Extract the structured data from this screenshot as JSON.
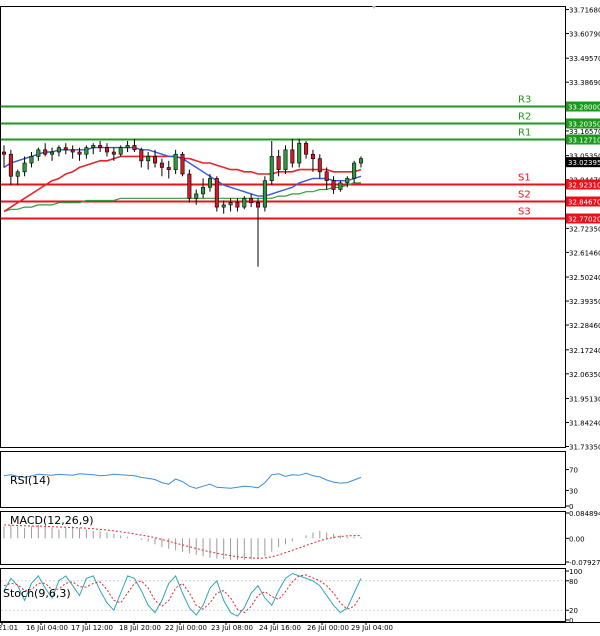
{
  "chart_data": [
    {
      "name": "main",
      "type": "candlestick",
      "price_axis_ticks": [
        "33.71680",
        "33.60790",
        "33.49570",
        "33.38690",
        "33.27800",
        "33.16570",
        "33.05350",
        "32.94470",
        "32.83590",
        "32.72350",
        "32.61460",
        "32.50240",
        "32.39350",
        "32.28460",
        "32.17240",
        "32.06350",
        "31.95130",
        "31.84240",
        "31.73350"
      ],
      "ylim": [
        31.7335,
        33.7168
      ],
      "time_labels": [
        "21:01",
        "16 Jul 04:00",
        "17 Jul 12:00",
        "18 Jul 20:00",
        "22 Jul 00:00",
        "23 Jul 08:00",
        "24 Jul 16:00",
        "26 Jul 00:00",
        "29 Jul 04:00"
      ],
      "current_price": "33.02395",
      "levels": [
        {
          "label": "R3",
          "value": "33.28000",
          "y": 33.28,
          "color": "#1a9a1a"
        },
        {
          "label": "R2",
          "value": "33.20350",
          "y": 33.2035,
          "color": "#1a9a1a"
        },
        {
          "label": "R1",
          "value": "33.12710",
          "y": 33.1271,
          "color": "#1a9a1a"
        },
        {
          "label": "S1",
          "value": "32.92310",
          "y": 32.9231,
          "color": "#e8101a"
        },
        {
          "label": "S2",
          "value": "32.84670",
          "y": 32.8467,
          "color": "#e8101a"
        },
        {
          "label": "S3",
          "value": "32.77020",
          "y": 32.7702,
          "color": "#e8101a"
        }
      ],
      "candles": [
        [
          33.07,
          33.1,
          33.0,
          33.06
        ],
        [
          33.06,
          33.08,
          32.92,
          32.96
        ],
        [
          32.96,
          32.99,
          32.92,
          32.98
        ],
        [
          32.98,
          33.05,
          32.96,
          33.02
        ],
        [
          33.02,
          33.07,
          33.0,
          33.05
        ],
        [
          33.05,
          33.09,
          33.03,
          33.08
        ],
        [
          33.08,
          33.11,
          33.05,
          33.06
        ],
        [
          33.06,
          33.09,
          33.03,
          33.07
        ],
        [
          33.07,
          33.1,
          33.05,
          33.09
        ],
        [
          33.09,
          33.11,
          33.06,
          33.08
        ],
        [
          33.08,
          33.1,
          33.04,
          33.07
        ],
        [
          33.07,
          33.09,
          33.03,
          33.06
        ],
        [
          33.06,
          33.1,
          33.04,
          33.09
        ],
        [
          33.09,
          33.11,
          33.06,
          33.1
        ],
        [
          33.1,
          33.12,
          33.07,
          33.09
        ],
        [
          33.09,
          33.11,
          33.05,
          33.07
        ],
        [
          33.07,
          33.09,
          33.03,
          33.06
        ],
        [
          33.06,
          33.1,
          33.05,
          33.09
        ],
        [
          33.09,
          33.12,
          33.07,
          33.1
        ],
        [
          33.1,
          33.13,
          33.07,
          33.08
        ],
        [
          33.08,
          33.09,
          33.0,
          33.03
        ],
        [
          33.03,
          33.07,
          32.99,
          33.05
        ],
        [
          33.05,
          33.08,
          33.0,
          33.02
        ],
        [
          33.02,
          33.04,
          32.96,
          33.0
        ],
        [
          33.0,
          33.03,
          32.95,
          32.99
        ],
        [
          32.99,
          33.08,
          32.97,
          33.06
        ],
        [
          33.06,
          33.07,
          32.96,
          32.97
        ],
        [
          32.97,
          32.99,
          32.84,
          32.86
        ],
        [
          32.86,
          32.9,
          32.83,
          32.88
        ],
        [
          32.88,
          32.95,
          32.86,
          32.91
        ],
        [
          32.91,
          32.97,
          32.89,
          32.95
        ],
        [
          32.95,
          32.96,
          32.8,
          32.82
        ],
        [
          32.82,
          32.85,
          32.79,
          32.83
        ],
        [
          32.83,
          32.86,
          32.8,
          32.84
        ],
        [
          32.84,
          32.86,
          32.8,
          32.82
        ],
        [
          32.82,
          32.87,
          32.81,
          32.86
        ],
        [
          32.86,
          32.88,
          32.82,
          32.84
        ],
        [
          32.84,
          32.86,
          32.55,
          32.82
        ],
        [
          32.82,
          32.96,
          32.8,
          32.94
        ],
        [
          32.94,
          33.12,
          32.92,
          33.05
        ],
        [
          33.05,
          33.08,
          32.96,
          32.99
        ],
        [
          32.99,
          33.1,
          32.97,
          33.08
        ],
        [
          33.08,
          33.13,
          33.0,
          33.02
        ],
        [
          33.02,
          33.13,
          33.0,
          33.11
        ],
        [
          33.11,
          33.12,
          33.04,
          33.06
        ],
        [
          33.06,
          33.08,
          32.98,
          33.04
        ],
        [
          33.04,
          33.06,
          32.95,
          32.98
        ],
        [
          32.98,
          33.0,
          32.9,
          32.94
        ],
        [
          32.94,
          32.96,
          32.88,
          32.9
        ],
        [
          32.9,
          32.94,
          32.89,
          32.93
        ],
        [
          32.93,
          32.96,
          32.91,
          32.95
        ],
        [
          32.95,
          33.03,
          32.93,
          33.02
        ],
        [
          33.02,
          33.05,
          33.0,
          33.04
        ]
      ],
      "ma_fast": [
        33.0,
        33.02,
        33.03,
        33.04,
        33.05,
        33.06,
        33.07,
        33.07,
        33.08,
        33.08,
        33.08,
        33.08,
        33.08,
        33.09,
        33.09,
        33.09,
        33.09,
        33.09,
        33.09,
        33.09,
        33.08,
        33.08,
        33.07,
        33.06,
        33.05,
        33.05,
        33.04,
        33.02,
        33.0,
        32.98,
        32.96,
        32.94,
        32.92,
        32.91,
        32.9,
        32.89,
        32.88,
        32.87,
        32.87,
        32.88,
        32.89,
        32.9,
        32.91,
        32.93,
        32.94,
        32.95,
        32.95,
        32.95,
        32.94,
        32.94,
        32.94,
        32.95,
        32.96
      ],
      "ma_mid": [
        32.8,
        32.82,
        32.84,
        32.86,
        32.88,
        32.9,
        32.92,
        32.94,
        32.95,
        32.97,
        32.98,
        33.0,
        33.01,
        33.02,
        33.03,
        33.03,
        33.04,
        33.05,
        33.05,
        33.05,
        33.05,
        33.05,
        33.05,
        33.05,
        33.05,
        33.05,
        33.04,
        33.04,
        33.03,
        33.02,
        33.02,
        33.01,
        33.0,
        32.99,
        32.99,
        32.98,
        32.98,
        32.97,
        32.97,
        32.97,
        32.98,
        32.98,
        32.98,
        32.99,
        32.99,
        32.99,
        32.99,
        32.99,
        32.98,
        32.98,
        32.98,
        32.98,
        32.99
      ],
      "ma_slow": [
        32.8,
        32.81,
        32.81,
        32.82,
        32.82,
        32.83,
        32.83,
        32.83,
        32.84,
        32.84,
        32.84,
        32.84,
        32.85,
        32.85,
        32.85,
        32.85,
        32.85,
        32.86,
        32.86,
        32.86,
        32.86,
        32.86,
        32.86,
        32.86,
        32.86,
        32.86,
        32.86,
        32.86,
        32.86,
        32.86,
        32.86,
        32.86,
        32.86,
        32.86,
        32.86,
        32.86,
        32.86,
        32.86,
        32.86,
        32.86,
        32.87,
        32.87,
        32.88,
        32.88,
        32.89,
        32.89,
        32.9,
        32.9,
        32.91,
        32.91,
        32.92,
        32.93,
        32.93
      ]
    },
    {
      "name": "rsi",
      "type": "line",
      "label": "RSI(14)",
      "ticks": [
        "70",
        "30",
        "0"
      ],
      "ylim": [
        0,
        100
      ],
      "values": [
        58,
        60,
        57,
        55,
        58,
        61,
        60,
        59,
        61,
        60,
        59,
        62,
        61,
        60,
        58,
        59,
        61,
        60,
        59,
        58,
        55,
        53,
        51,
        45,
        42,
        52,
        47,
        38,
        34,
        38,
        42,
        36,
        35,
        34,
        36,
        38,
        37,
        35,
        45,
        60,
        62,
        57,
        60,
        59,
        63,
        58,
        56,
        50,
        46,
        44,
        45,
        50,
        55
      ]
    },
    {
      "name": "macd",
      "type": "bar",
      "label": "MACD(12,26,9)",
      "ticks": [
        "0.084894",
        "0.00",
        "-0.079272"
      ],
      "ylim": [
        -0.0793,
        0.0849
      ],
      "histogram": [
        0.04,
        0.045,
        0.04,
        0.035,
        0.04,
        0.045,
        0.04,
        0.035,
        0.03,
        0.035,
        0.04,
        0.035,
        0.03,
        0.025,
        0.025,
        0.02,
        0.015,
        0.01,
        0.005,
        0.0,
        -0.005,
        -0.01,
        -0.02,
        -0.03,
        -0.035,
        -0.04,
        -0.045,
        -0.05,
        -0.055,
        -0.06,
        -0.065,
        -0.068,
        -0.07,
        -0.072,
        -0.073,
        -0.072,
        -0.07,
        -0.068,
        -0.06,
        -0.045,
        -0.03,
        -0.02,
        -0.01,
        0.0,
        0.01,
        0.02,
        0.025,
        0.02,
        0.015,
        0.01,
        0.005,
        0.005,
        0.005
      ],
      "signal": [
        0.045,
        0.044,
        0.043,
        0.042,
        0.041,
        0.041,
        0.04,
        0.039,
        0.038,
        0.037,
        0.036,
        0.035,
        0.034,
        0.032,
        0.03,
        0.028,
        0.025,
        0.022,
        0.019,
        0.015,
        0.011,
        0.007,
        0.002,
        -0.004,
        -0.01,
        -0.016,
        -0.022,
        -0.028,
        -0.034,
        -0.04,
        -0.045,
        -0.05,
        -0.054,
        -0.058,
        -0.062,
        -0.064,
        -0.066,
        -0.067,
        -0.066,
        -0.062,
        -0.056,
        -0.048,
        -0.04,
        -0.032,
        -0.024,
        -0.016,
        -0.008,
        -0.002,
        0.003,
        0.006,
        0.008,
        0.009,
        0.009
      ]
    },
    {
      "name": "stoch",
      "type": "line",
      "label": "Stoch(9,6,3)",
      "ticks": [
        "100",
        "80",
        "20",
        "0"
      ],
      "ylim": [
        0,
        100
      ],
      "main": [
        60,
        85,
        70,
        40,
        75,
        90,
        65,
        45,
        80,
        90,
        70,
        50,
        85,
        90,
        60,
        35,
        20,
        55,
        90,
        85,
        60,
        30,
        15,
        40,
        75,
        90,
        55,
        25,
        10,
        30,
        65,
        80,
        40,
        15,
        8,
        25,
        55,
        70,
        45,
        30,
        60,
        85,
        95,
        90,
        85,
        80,
        70,
        50,
        30,
        15,
        25,
        55,
        85
      ],
      "signal": [
        70,
        75,
        72,
        60,
        62,
        75,
        75,
        62,
        63,
        75,
        78,
        68,
        67,
        75,
        78,
        62,
        40,
        35,
        55,
        75,
        80,
        65,
        40,
        28,
        40,
        65,
        75,
        55,
        30,
        22,
        35,
        55,
        60,
        45,
        22,
        15,
        28,
        50,
        58,
        48,
        42,
        58,
        78,
        90,
        92,
        86,
        80,
        70,
        55,
        35,
        22,
        28,
        50
      ]
    }
  ]
}
